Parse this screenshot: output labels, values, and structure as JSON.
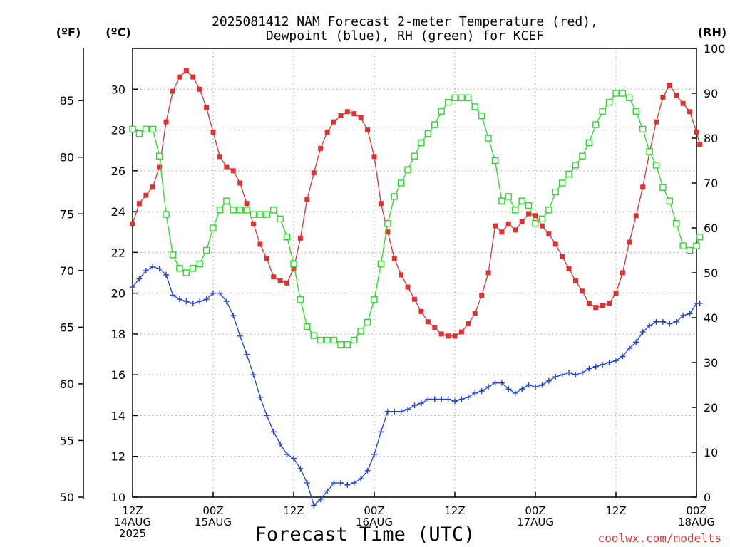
{
  "chart_data": {
    "type": "line",
    "title_line1": "2025081412 NAM Forecast 2-meter Temperature (red),",
    "title_line2": "Dewpoint (blue), RH (green) for KCEF",
    "xlabel": "Forecast Time (UTC)",
    "credit": "coolwx.com/modelts",
    "unit_f": "(ºF)",
    "unit_c": "(ºC)",
    "unit_rh": "(RH)",
    "x_hours_range": [
      0,
      84
    ],
    "y_celsius_range": [
      10,
      32
    ],
    "y_fahrenheit_ticks": [
      50,
      55,
      60,
      65,
      70,
      75,
      80,
      85
    ],
    "y_celsius_ticks": [
      10,
      12,
      14,
      16,
      18,
      20,
      22,
      24,
      26,
      28,
      30
    ],
    "y_rh_range": [
      0,
      100
    ],
    "y_rh_ticks": [
      0,
      10,
      20,
      30,
      40,
      50,
      60,
      70,
      80,
      90,
      100
    ],
    "x_ticks": [
      {
        "hour": 0,
        "lines": [
          "12Z",
          "14AUG",
          "2025"
        ]
      },
      {
        "hour": 12,
        "lines": [
          "00Z",
          "15AUG"
        ]
      },
      {
        "hour": 24,
        "lines": [
          "12Z"
        ]
      },
      {
        "hour": 36,
        "lines": [
          "00Z",
          "16AUG"
        ]
      },
      {
        "hour": 48,
        "lines": [
          "12Z"
        ]
      },
      {
        "hour": 60,
        "lines": [
          "00Z",
          "17AUG"
        ]
      },
      {
        "hour": 72,
        "lines": [
          "12Z"
        ]
      },
      {
        "hour": 84,
        "lines": [
          "00Z",
          "18AUG"
        ]
      }
    ],
    "grid": "dotted",
    "series": [
      {
        "name": "Temperature",
        "unit": "C",
        "color": "#e03030",
        "marker": "filled-square",
        "values": [
          [
            0,
            23.4
          ],
          [
            1,
            24.4
          ],
          [
            2,
            24.8
          ],
          [
            3,
            25.2
          ],
          [
            4,
            26.2
          ],
          [
            5,
            28.4
          ],
          [
            6,
            29.9
          ],
          [
            7,
            30.6
          ],
          [
            8,
            30.9
          ],
          [
            9,
            30.6
          ],
          [
            10,
            30.0
          ],
          [
            11,
            29.1
          ],
          [
            12,
            27.9
          ],
          [
            13,
            26.7
          ],
          [
            14,
            26.2
          ],
          [
            15,
            26.0
          ],
          [
            16,
            25.4
          ],
          [
            17,
            24.4
          ],
          [
            18,
            23.4
          ],
          [
            19,
            22.4
          ],
          [
            20,
            21.7
          ],
          [
            21,
            20.8
          ],
          [
            22,
            20.6
          ],
          [
            23,
            20.5
          ],
          [
            24,
            21.2
          ],
          [
            25,
            22.7
          ],
          [
            26,
            24.6
          ],
          [
            27,
            25.9
          ],
          [
            28,
            27.1
          ],
          [
            29,
            27.9
          ],
          [
            30,
            28.4
          ],
          [
            31,
            28.7
          ],
          [
            32,
            28.9
          ],
          [
            33,
            28.8
          ],
          [
            34,
            28.6
          ],
          [
            35,
            28.0
          ],
          [
            36,
            26.7
          ],
          [
            37,
            24.4
          ],
          [
            38,
            23.0
          ],
          [
            39,
            21.7
          ],
          [
            40,
            20.9
          ],
          [
            41,
            20.3
          ],
          [
            42,
            19.7
          ],
          [
            43,
            19.1
          ],
          [
            44,
            18.6
          ],
          [
            45,
            18.3
          ],
          [
            46,
            18.0
          ],
          [
            47,
            17.9
          ],
          [
            48,
            17.9
          ],
          [
            49,
            18.1
          ],
          [
            50,
            18.5
          ],
          [
            51,
            19.0
          ],
          [
            52,
            19.9
          ],
          [
            53,
            21.0
          ],
          [
            54,
            23.3
          ],
          [
            55,
            23.0
          ],
          [
            56,
            23.4
          ],
          [
            57,
            23.1
          ],
          [
            58,
            23.5
          ],
          [
            59,
            23.9
          ],
          [
            60,
            23.8
          ],
          [
            61,
            23.3
          ],
          [
            62,
            22.9
          ],
          [
            63,
            22.4
          ],
          [
            64,
            21.8
          ],
          [
            65,
            21.2
          ],
          [
            66,
            20.6
          ],
          [
            67,
            20.1
          ],
          [
            68,
            19.5
          ],
          [
            69,
            19.3
          ],
          [
            70,
            19.4
          ],
          [
            71,
            19.5
          ],
          [
            72,
            20.0
          ],
          [
            73,
            21.0
          ],
          [
            74,
            22.5
          ],
          [
            75,
            23.8
          ],
          [
            76,
            25.2
          ],
          [
            77,
            26.9
          ],
          [
            78,
            28.4
          ],
          [
            79,
            29.6
          ],
          [
            80,
            30.2
          ],
          [
            81,
            29.7
          ],
          [
            82,
            29.3
          ],
          [
            83,
            28.9
          ],
          [
            84,
            27.9
          ],
          [
            84.5,
            27.3
          ]
        ]
      },
      {
        "name": "Dewpoint",
        "unit": "C",
        "color": "#2040e0",
        "marker": "plus",
        "values": [
          [
            0,
            20.3
          ],
          [
            1,
            20.7
          ],
          [
            2,
            21.1
          ],
          [
            3,
            21.3
          ],
          [
            4,
            21.2
          ],
          [
            5,
            20.9
          ],
          [
            6,
            19.9
          ],
          [
            7,
            19.7
          ],
          [
            8,
            19.6
          ],
          [
            9,
            19.5
          ],
          [
            10,
            19.6
          ],
          [
            11,
            19.7
          ],
          [
            12,
            20.0
          ],
          [
            13,
            20.0
          ],
          [
            14,
            19.6
          ],
          [
            15,
            18.9
          ],
          [
            16,
            17.9
          ],
          [
            17,
            17.0
          ],
          [
            18,
            16.0
          ],
          [
            19,
            14.9
          ],
          [
            20,
            14.0
          ],
          [
            21,
            13.2
          ],
          [
            22,
            12.6
          ],
          [
            23,
            12.1
          ],
          [
            24,
            11.9
          ],
          [
            25,
            11.4
          ],
          [
            26,
            10.7
          ],
          [
            27,
            9.6
          ],
          [
            28,
            9.9
          ],
          [
            29,
            10.3
          ],
          [
            30,
            10.7
          ],
          [
            31,
            10.7
          ],
          [
            32,
            10.6
          ],
          [
            33,
            10.7
          ],
          [
            34,
            10.9
          ],
          [
            35,
            11.3
          ],
          [
            36,
            12.1
          ],
          [
            37,
            13.2
          ],
          [
            38,
            14.2
          ],
          [
            39,
            14.2
          ],
          [
            40,
            14.2
          ],
          [
            41,
            14.3
          ],
          [
            42,
            14.5
          ],
          [
            43,
            14.6
          ],
          [
            44,
            14.8
          ],
          [
            45,
            14.8
          ],
          [
            46,
            14.8
          ],
          [
            47,
            14.8
          ],
          [
            48,
            14.7
          ],
          [
            49,
            14.8
          ],
          [
            50,
            14.9
          ],
          [
            51,
            15.1
          ],
          [
            52,
            15.2
          ],
          [
            53,
            15.4
          ],
          [
            54,
            15.6
          ],
          [
            55,
            15.6
          ],
          [
            56,
            15.3
          ],
          [
            57,
            15.1
          ],
          [
            58,
            15.3
          ],
          [
            59,
            15.5
          ],
          [
            60,
            15.4
          ],
          [
            61,
            15.5
          ],
          [
            62,
            15.7
          ],
          [
            63,
            15.9
          ],
          [
            64,
            16.0
          ],
          [
            65,
            16.1
          ],
          [
            66,
            16.0
          ],
          [
            67,
            16.1
          ],
          [
            68,
            16.3
          ],
          [
            69,
            16.4
          ],
          [
            70,
            16.5
          ],
          [
            71,
            16.6
          ],
          [
            72,
            16.7
          ],
          [
            73,
            16.9
          ],
          [
            74,
            17.3
          ],
          [
            75,
            17.6
          ],
          [
            76,
            18.1
          ],
          [
            77,
            18.4
          ],
          [
            78,
            18.6
          ],
          [
            79,
            18.6
          ],
          [
            80,
            18.5
          ],
          [
            81,
            18.6
          ],
          [
            82,
            18.9
          ],
          [
            83,
            19.0
          ],
          [
            84,
            19.5
          ],
          [
            84.5,
            19.5
          ]
        ]
      },
      {
        "name": "RH",
        "unit": "%",
        "color": "#20e020",
        "marker": "open-square",
        "values": [
          [
            0,
            82
          ],
          [
            1,
            81
          ],
          [
            2,
            82
          ],
          [
            3,
            82
          ],
          [
            4,
            76
          ],
          [
            5,
            63
          ],
          [
            6,
            54
          ],
          [
            7,
            51
          ],
          [
            8,
            50
          ],
          [
            9,
            51
          ],
          [
            10,
            52
          ],
          [
            11,
            55
          ],
          [
            12,
            60
          ],
          [
            13,
            64
          ],
          [
            14,
            66
          ],
          [
            15,
            64
          ],
          [
            16,
            64
          ],
          [
            17,
            64
          ],
          [
            18,
            63
          ],
          [
            19,
            63
          ],
          [
            20,
            63
          ],
          [
            21,
            64
          ],
          [
            22,
            62
          ],
          [
            23,
            58
          ],
          [
            24,
            52
          ],
          [
            25,
            44
          ],
          [
            26,
            38
          ],
          [
            27,
            36
          ],
          [
            28,
            35
          ],
          [
            29,
            35
          ],
          [
            30,
            35
          ],
          [
            31,
            34
          ],
          [
            32,
            34
          ],
          [
            33,
            35
          ],
          [
            34,
            37
          ],
          [
            35,
            39
          ],
          [
            36,
            44
          ],
          [
            37,
            52
          ],
          [
            38,
            61
          ],
          [
            39,
            67
          ],
          [
            40,
            70
          ],
          [
            41,
            73
          ],
          [
            42,
            76
          ],
          [
            43,
            79
          ],
          [
            44,
            81
          ],
          [
            45,
            83
          ],
          [
            46,
            86
          ],
          [
            47,
            88
          ],
          [
            48,
            89
          ],
          [
            49,
            89
          ],
          [
            50,
            89
          ],
          [
            51,
            87
          ],
          [
            52,
            85
          ],
          [
            53,
            80
          ],
          [
            54,
            75
          ],
          [
            55,
            66
          ],
          [
            56,
            67
          ],
          [
            57,
            64
          ],
          [
            58,
            66
          ],
          [
            59,
            65
          ],
          [
            60,
            61
          ],
          [
            61,
            62
          ],
          [
            62,
            64
          ],
          [
            63,
            68
          ],
          [
            64,
            70
          ],
          [
            65,
            72
          ],
          [
            66,
            74
          ],
          [
            67,
            76
          ],
          [
            68,
            79
          ],
          [
            69,
            83
          ],
          [
            70,
            86
          ],
          [
            71,
            88
          ],
          [
            72,
            90
          ],
          [
            73,
            90
          ],
          [
            74,
            89
          ],
          [
            75,
            86
          ],
          [
            76,
            82
          ],
          [
            77,
            77
          ],
          [
            78,
            74
          ],
          [
            79,
            69
          ],
          [
            80,
            66
          ],
          [
            81,
            61
          ],
          [
            82,
            56
          ],
          [
            83,
            55
          ],
          [
            84,
            56
          ],
          [
            84.5,
            58
          ]
        ]
      }
    ]
  }
}
